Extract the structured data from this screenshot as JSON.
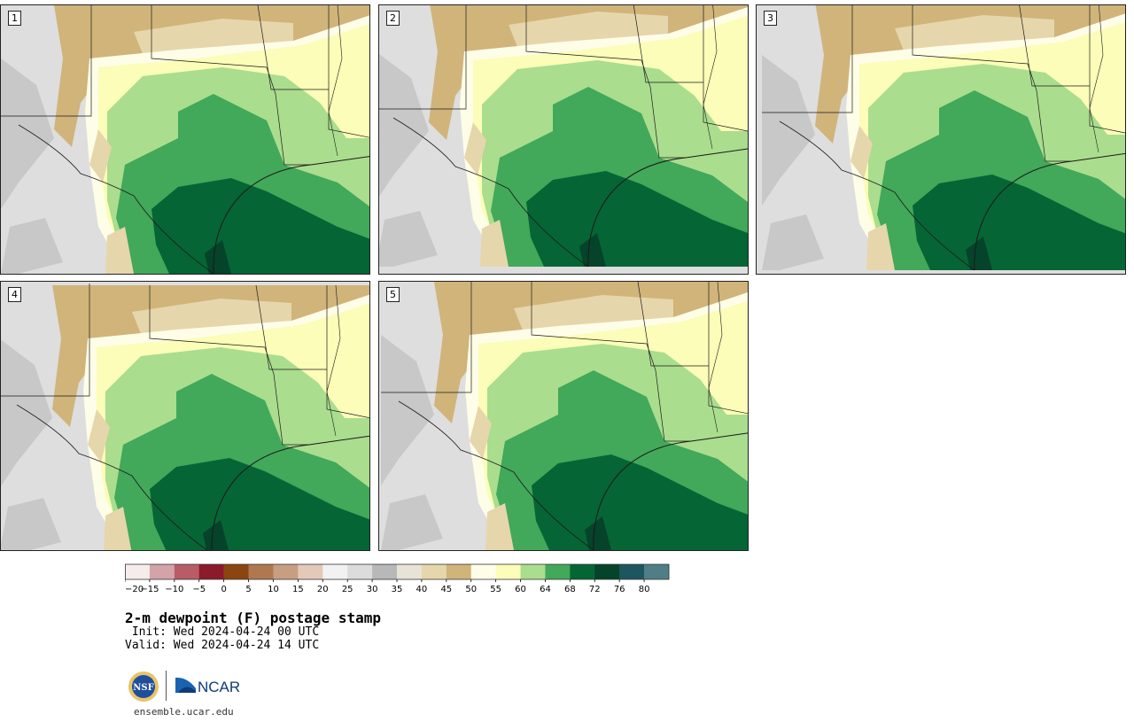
{
  "panels": [
    {
      "member": "1"
    },
    {
      "member": "2"
    },
    {
      "member": "3"
    },
    {
      "member": "4"
    },
    {
      "member": "5"
    }
  ],
  "colorbar": {
    "ticks": [
      "−20",
      "−15",
      "−10",
      "−5",
      "0",
      "5",
      "10",
      "15",
      "20",
      "25",
      "30",
      "35",
      "40",
      "45",
      "50",
      "55",
      "60",
      "64",
      "68",
      "72",
      "76",
      "80"
    ],
    "colors": [
      "#f7ecec",
      "#d3a3a9",
      "#b85d68",
      "#8b1a2a",
      "#8b4510",
      "#b07850",
      "#c89e82",
      "#e3c9b8",
      "#f2f2f2",
      "#dcdcdc",
      "#b8b8b8",
      "#e7e3d6",
      "#e6d6ab",
      "#d0b47a",
      "#fefde8",
      "#fbfdb8",
      "#aadd8e",
      "#42a85a",
      "#066535",
      "#05432a",
      "#1e5660",
      "#507e86"
    ]
  },
  "title": "2-m dewpoint (F) postage stamp",
  "init_text": " Init: Wed 2024-04-24 00 UTC",
  "valid_text": "Valid: Wed 2024-04-24 14 UTC",
  "logos": {
    "nsf": "NSF",
    "ncar": "NCAR"
  },
  "footer": "ensemble.ucar.edu"
}
